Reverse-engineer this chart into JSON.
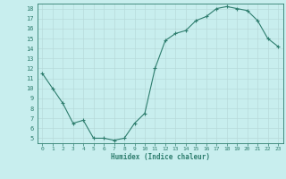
{
  "x": [
    0,
    1,
    2,
    3,
    4,
    5,
    6,
    7,
    8,
    9,
    10,
    11,
    12,
    13,
    14,
    15,
    16,
    17,
    18,
    19,
    20,
    21,
    22,
    23
  ],
  "y": [
    11.5,
    10.0,
    8.5,
    6.5,
    6.8,
    5.0,
    5.0,
    4.8,
    5.0,
    6.5,
    7.5,
    12.0,
    14.8,
    15.5,
    15.8,
    16.8,
    17.2,
    18.0,
    18.2,
    18.0,
    17.8,
    16.8,
    15.0,
    14.2
  ],
  "line_color": "#2e7d6e",
  "marker": "+",
  "bg_color": "#c8eeee",
  "grid_color": "#b8dada",
  "xlabel": "Humidex (Indice chaleur)",
  "ylim": [
    4.5,
    18.5
  ],
  "xlim": [
    -0.5,
    23.5
  ],
  "yticks": [
    5,
    6,
    7,
    8,
    9,
    10,
    11,
    12,
    13,
    14,
    15,
    16,
    17,
    18
  ],
  "xticks": [
    0,
    1,
    2,
    3,
    4,
    5,
    6,
    7,
    8,
    9,
    10,
    11,
    12,
    13,
    14,
    15,
    16,
    17,
    18,
    19,
    20,
    21,
    22,
    23
  ],
  "tick_color": "#2e7d6e",
  "spine_color": "#2e7d6e"
}
